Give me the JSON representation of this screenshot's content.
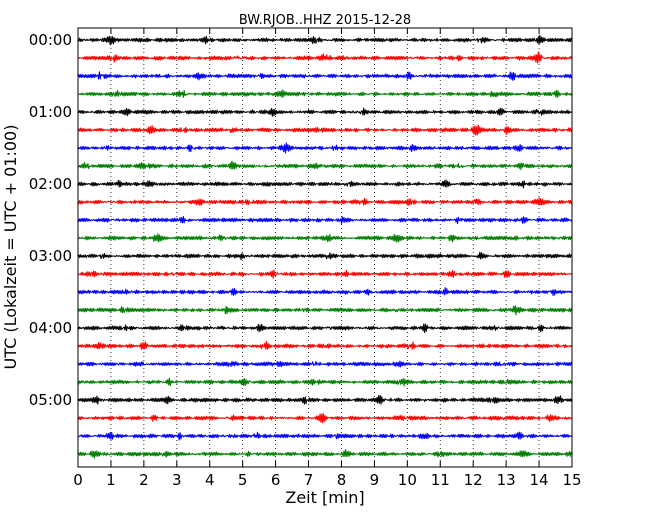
{
  "chart_data": {
    "type": "line",
    "title": "BW.RJOB..HHZ 2015-12-28",
    "xlabel": "Zeit  [min]",
    "ylabel": "UTC (Lokalzeit = UTC + 01:00)",
    "xlim": [
      0,
      15
    ],
    "xticks": [
      0,
      1,
      2,
      3,
      4,
      5,
      6,
      7,
      8,
      9,
      10,
      11,
      12,
      13,
      14,
      15
    ],
    "xtick_labels": [
      "0",
      "1",
      "2",
      "3",
      "4",
      "5",
      "6",
      "7",
      "8",
      "9",
      "10",
      "11",
      "12",
      "13",
      "14",
      "15"
    ],
    "grid": "vertical-dotted",
    "trace_interval_min": 15,
    "colors": [
      "#000000",
      "#ff0000",
      "#0000ff",
      "#008000"
    ],
    "y_tick_labels": [
      {
        "label": "00:00",
        "trace_index": 0
      },
      {
        "label": "01:00",
        "trace_index": 4
      },
      {
        "label": "02:00",
        "trace_index": 8
      },
      {
        "label": "03:00",
        "trace_index": 12
      },
      {
        "label": "04:00",
        "trace_index": 16
      },
      {
        "label": "05:00",
        "trace_index": 20
      }
    ],
    "traces": [
      {
        "start": "00:00",
        "color": "#000000",
        "bursts": [
          [
            1.0,
            0.6
          ],
          [
            3.9,
            0.5
          ],
          [
            7.2,
            0.6
          ],
          [
            12.2,
            0.8
          ],
          [
            14.0,
            0.5
          ]
        ]
      },
      {
        "start": "00:15",
        "color": "#ff0000",
        "bursts": [
          [
            1.1,
            0.5
          ],
          [
            4.9,
            0.6
          ],
          [
            7.5,
            0.5
          ],
          [
            8.2,
            0.6
          ],
          [
            11.5,
            0.4
          ],
          [
            14.0,
            1.0
          ]
        ]
      },
      {
        "start": "00:30",
        "color": "#0000ff",
        "bursts": [
          [
            0.7,
            0.5
          ],
          [
            3.7,
            0.4
          ],
          [
            5.5,
            0.5
          ],
          [
            10.0,
            0.6
          ],
          [
            13.2,
            0.5
          ]
        ]
      },
      {
        "start": "00:45",
        "color": "#008000",
        "bursts": [
          [
            1.2,
            0.4
          ],
          [
            3.2,
            0.6
          ],
          [
            6.2,
            0.4
          ],
          [
            12.6,
            0.5
          ],
          [
            14.5,
            0.5
          ]
        ]
      },
      {
        "start": "01:00",
        "color": "#000000",
        "bursts": [
          [
            1.5,
            0.4
          ],
          [
            5.9,
            0.4
          ],
          [
            8.6,
            0.4
          ],
          [
            12.8,
            0.4
          ],
          [
            14.0,
            0.5
          ]
        ]
      },
      {
        "start": "01:15",
        "color": "#ff0000",
        "bursts": [
          [
            2.2,
            0.5
          ],
          [
            3.2,
            0.4
          ],
          [
            4.6,
            0.4
          ],
          [
            7.3,
            0.4
          ],
          [
            12.1,
            0.7
          ],
          [
            13.0,
            0.6
          ]
        ]
      },
      {
        "start": "01:30",
        "color": "#0000ff",
        "bursts": [
          [
            0.9,
            0.5
          ],
          [
            3.4,
            0.4
          ],
          [
            6.3,
            0.6
          ],
          [
            7.8,
            0.4
          ],
          [
            10.1,
            0.4
          ],
          [
            13.4,
            0.4
          ]
        ]
      },
      {
        "start": "01:45",
        "color": "#008000",
        "bursts": [
          [
            0.3,
            0.7
          ],
          [
            2.0,
            0.5
          ],
          [
            4.7,
            0.5
          ],
          [
            7.3,
            0.4
          ],
          [
            11.6,
            0.5
          ],
          [
            13.5,
            0.5
          ]
        ]
      },
      {
        "start": "02:00",
        "color": "#000000",
        "bursts": [
          [
            1.2,
            0.4
          ],
          [
            2.2,
            0.4
          ],
          [
            5.8,
            0.3
          ],
          [
            8.2,
            0.4
          ],
          [
            11.2,
            0.5
          ],
          [
            13.5,
            0.4
          ]
        ]
      },
      {
        "start": "02:15",
        "color": "#ff0000",
        "bursts": [
          [
            0.9,
            0.4
          ],
          [
            3.7,
            0.4
          ],
          [
            5.2,
            0.5
          ],
          [
            8.6,
            0.7
          ],
          [
            10.1,
            0.4
          ],
          [
            12.1,
            0.4
          ],
          [
            14.0,
            0.4
          ]
        ]
      },
      {
        "start": "02:30",
        "color": "#0000ff",
        "bursts": [
          [
            1.0,
            0.4
          ],
          [
            3.2,
            0.4
          ],
          [
            8.0,
            0.4
          ],
          [
            11.6,
            0.5
          ],
          [
            13.5,
            0.4
          ]
        ]
      },
      {
        "start": "02:45",
        "color": "#008000",
        "bursts": [
          [
            2.4,
            0.7
          ],
          [
            4.4,
            0.5
          ],
          [
            7.6,
            0.4
          ],
          [
            9.7,
            0.5
          ],
          [
            11.4,
            0.4
          ],
          [
            13.3,
            0.4
          ]
        ]
      },
      {
        "start": "03:00",
        "color": "#000000",
        "bursts": [
          [
            0.7,
            0.4
          ],
          [
            5.0,
            0.5
          ],
          [
            7.6,
            0.4
          ],
          [
            10.6,
            0.4
          ],
          [
            12.2,
            0.4
          ]
        ]
      },
      {
        "start": "03:15",
        "color": "#ff0000",
        "bursts": [
          [
            0.4,
            0.4
          ],
          [
            2.9,
            0.4
          ],
          [
            6.0,
            0.6
          ],
          [
            8.1,
            0.4
          ],
          [
            11.4,
            0.4
          ],
          [
            13.0,
            0.4
          ]
        ]
      },
      {
        "start": "03:30",
        "color": "#0000ff",
        "bursts": [
          [
            1.5,
            0.4
          ],
          [
            4.7,
            0.5
          ],
          [
            8.8,
            0.4
          ],
          [
            11.1,
            0.6
          ],
          [
            14.4,
            0.5
          ]
        ]
      },
      {
        "start": "03:45",
        "color": "#008000",
        "bursts": [
          [
            1.4,
            0.4
          ],
          [
            4.5,
            0.5
          ],
          [
            6.8,
            0.4
          ],
          [
            9.7,
            0.4
          ],
          [
            13.3,
            0.6
          ]
        ]
      },
      {
        "start": "04:00",
        "color": "#000000",
        "bursts": [
          [
            1.4,
            0.4
          ],
          [
            3.2,
            0.4
          ],
          [
            5.5,
            0.4
          ],
          [
            7.6,
            0.4
          ],
          [
            10.5,
            0.6
          ],
          [
            12.7,
            0.4
          ],
          [
            14.0,
            0.4
          ]
        ]
      },
      {
        "start": "04:15",
        "color": "#ff0000",
        "bursts": [
          [
            0.7,
            0.4
          ],
          [
            2.0,
            0.4
          ],
          [
            5.7,
            0.4
          ],
          [
            7.5,
            0.4
          ],
          [
            10.1,
            0.6
          ],
          [
            12.5,
            0.4
          ],
          [
            14.5,
            0.4
          ]
        ]
      },
      {
        "start": "04:30",
        "color": "#0000ff",
        "bursts": [
          [
            2.1,
            0.4
          ],
          [
            4.6,
            0.4
          ],
          [
            6.1,
            0.4
          ],
          [
            7.2,
            0.5
          ],
          [
            9.8,
            0.4
          ],
          [
            12.9,
            0.4
          ]
        ]
      },
      {
        "start": "04:45",
        "color": "#008000",
        "bursts": [
          [
            2.8,
            0.4
          ],
          [
            5.1,
            0.5
          ],
          [
            7.2,
            0.4
          ],
          [
            9.8,
            1.1
          ],
          [
            13.0,
            0.4
          ]
        ]
      },
      {
        "start": "05:00",
        "color": "#000000",
        "bursts": [
          [
            0.6,
            0.4
          ],
          [
            2.7,
            0.4
          ],
          [
            6.9,
            0.5
          ],
          [
            9.2,
            0.6
          ],
          [
            12.6,
            0.4
          ],
          [
            14.6,
            0.7
          ]
        ]
      },
      {
        "start": "05:15",
        "color": "#ff0000",
        "bursts": [
          [
            2.3,
            0.4
          ],
          [
            4.6,
            0.4
          ],
          [
            7.4,
            0.7
          ],
          [
            9.9,
            0.4
          ],
          [
            12.9,
            0.7
          ],
          [
            14.3,
            0.4
          ]
        ]
      },
      {
        "start": "05:30",
        "color": "#0000ff",
        "bursts": [
          [
            1.0,
            0.4
          ],
          [
            3.1,
            0.4
          ],
          [
            5.4,
            0.6
          ],
          [
            7.8,
            0.4
          ],
          [
            10.5,
            0.4
          ],
          [
            13.4,
            0.5
          ]
        ]
      },
      {
        "start": "05:45",
        "color": "#008000",
        "bursts": [
          [
            0.5,
            0.5
          ],
          [
            2.6,
            0.4
          ],
          [
            5.1,
            0.4
          ],
          [
            8.1,
            0.7
          ],
          [
            11.0,
            0.4
          ],
          [
            13.5,
            0.4
          ],
          [
            14.9,
            0.5
          ]
        ]
      }
    ]
  }
}
